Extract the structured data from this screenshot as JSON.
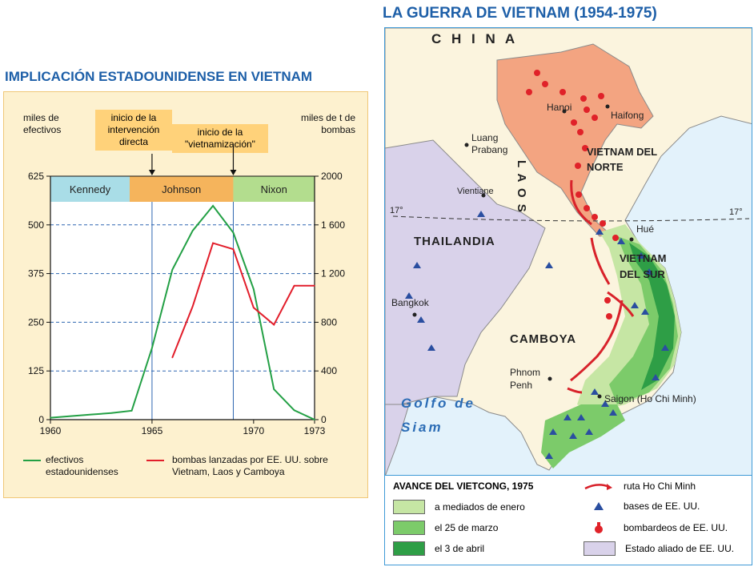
{
  "left_title": "IMPLICACIÓN ESTADOUNIDENSE EN VIETNAM",
  "right_title": "LA GUERRA DE VIETNAM (1954-1975)",
  "chart_data": {
    "type": "line",
    "left_axis_label": "miles de efectivos",
    "right_axis_label": "miles de t de bombas",
    "x_ticks": [
      "1960",
      "1965",
      "1970",
      "1973"
    ],
    "xlim": [
      1960,
      1973
    ],
    "left_ticks": [
      "625",
      "500",
      "375",
      "250",
      "125",
      "0"
    ],
    "left_ylim": [
      0,
      625
    ],
    "right_ticks": [
      "2000",
      "1 600",
      "1 200",
      "800",
      "400",
      "0"
    ],
    "right_ylim": [
      0,
      2000
    ],
    "grid": "horizontal dashed",
    "presidents": [
      {
        "name": "Kennedy",
        "from": 1960,
        "to": 1963.9,
        "color": "#a9dde7"
      },
      {
        "name": "Johnson",
        "from": 1963.9,
        "to": 1969,
        "color": "#f5b45c"
      },
      {
        "name": "Nixon",
        "from": 1969,
        "to": 1973,
        "color": "#b3dd8e"
      }
    ],
    "annotations": [
      {
        "text": "inicio de la intervención directa",
        "x": 1965
      },
      {
        "text": "inicio de la \"vietnamización\"",
        "x": 1969
      }
    ],
    "series": [
      {
        "name": "efectivos estadounidenses",
        "axis": "left",
        "color": "#23a045",
        "x": [
          1960,
          1961,
          1962,
          1963,
          1964,
          1965,
          1966,
          1967,
          1968,
          1969,
          1970,
          1971,
          1972,
          1973
        ],
        "values": [
          5,
          9,
          13,
          17,
          23,
          184,
          385,
          485,
          549,
          480,
          335,
          78,
          24,
          0
        ]
      },
      {
        "name": "bombas lanzadas por EE. UU. sobre Vietnam, Laos y Camboya",
        "axis": "right",
        "color": "#e21e2b",
        "x": [
          1966,
          1967,
          1968,
          1969,
          1970,
          1971,
          1972,
          1973
        ],
        "values": [
          510,
          930,
          1450,
          1400,
          920,
          780,
          1100,
          1100
        ]
      }
    ]
  },
  "map": {
    "labels": {
      "china": "C H I N A",
      "hanoi": "Hanoi",
      "haifong": "Haifong",
      "north_vietnam": "VIETNAM DEL NORTE",
      "luang_prabang": "Luang Prabang",
      "laos": "L A O S",
      "vientiane": "Vientiane",
      "lat_left": "17°",
      "lat_right": "17°",
      "hue": "Hué",
      "thailand": "THAILANDIA",
      "south_vietnam": "VIETNAM DEL SUR",
      "bangkok": "Bangkok",
      "cambodia": "CAMBOYA",
      "phnom_penh": "Phnom Penh",
      "saigon": "Saigon (Ho Chi Minh)",
      "gulf": "Golfo de Siam"
    },
    "colors": {
      "sea": "#e3f2fb",
      "north_vietnam": "#f3a481",
      "allied": "#d9d2ea",
      "land": "#fbf4de",
      "jan": "#c6e6a4",
      "mar": "#7ccb6a",
      "apr": "#2e9e46"
    }
  },
  "legend": {
    "title": "AVANCE DEL VIETCONG, 1975",
    "jan": "a mediados de enero",
    "mar": "el 25 de marzo",
    "apr": "el 3 de abril",
    "route": "ruta Ho Chi Minh",
    "bases": "bases de EE. UU.",
    "bombing": "bombardeos de EE. UU.",
    "allied": "Estado aliado de EE. UU."
  }
}
